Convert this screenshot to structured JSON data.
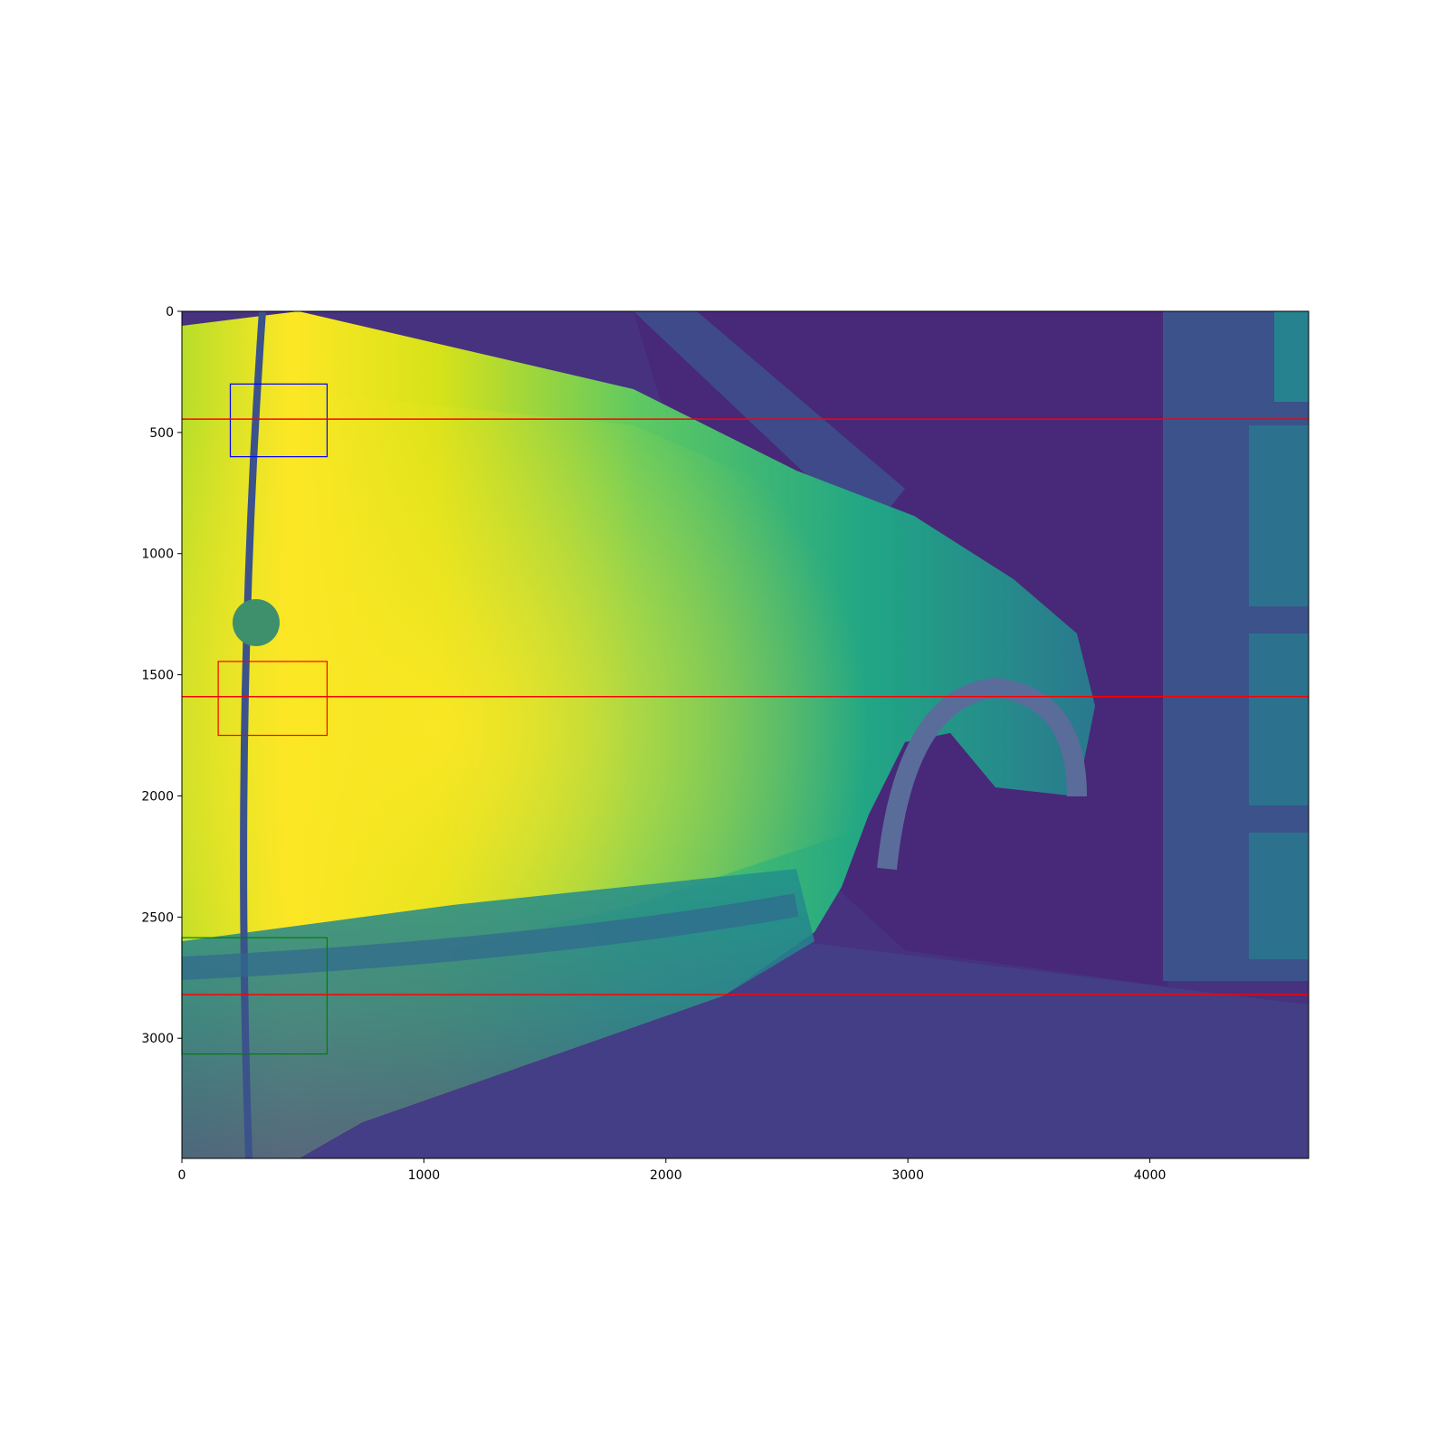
{
  "chart_data": {
    "type": "heatmap",
    "title": "",
    "xlabel": "",
    "ylabel": "",
    "colormap": "viridis",
    "grid": false,
    "image_size": {
      "width": 4656,
      "height": 3496
    },
    "xlim": [
      0,
      4656
    ],
    "ylim": [
      3496,
      0
    ],
    "x_ticks": [
      {
        "value": 0,
        "label": "0"
      },
      {
        "value": 1000,
        "label": "1000"
      },
      {
        "value": 2000,
        "label": "2000"
      },
      {
        "value": 3000,
        "label": "3000"
      },
      {
        "value": 4000,
        "label": "4000"
      }
    ],
    "y_ticks": [
      {
        "value": 0,
        "label": "0"
      },
      {
        "value": 500,
        "label": "500"
      },
      {
        "value": 1000,
        "label": "1000"
      },
      {
        "value": 1500,
        "label": "1500"
      },
      {
        "value": 2000,
        "label": "2000"
      },
      {
        "value": 2500,
        "label": "2500"
      },
      {
        "value": 3000,
        "label": "3000"
      }
    ],
    "horizontal_lines": [
      {
        "y": 445,
        "color": "#ff0000"
      },
      {
        "y": 1590,
        "color": "#ff0000"
      },
      {
        "y": 2820,
        "color": "#ff0000"
      }
    ],
    "rectangles": [
      {
        "x0": 200,
        "y0": 300,
        "x1": 600,
        "y1": 600,
        "color": "#0000ff"
      },
      {
        "x0": 150,
        "y0": 1445,
        "x1": 600,
        "y1": 1750,
        "color": "#ff0000"
      },
      {
        "x0": 0,
        "y0": 2585,
        "x1": 600,
        "y1": 3065,
        "color": "#008000"
      }
    ]
  }
}
